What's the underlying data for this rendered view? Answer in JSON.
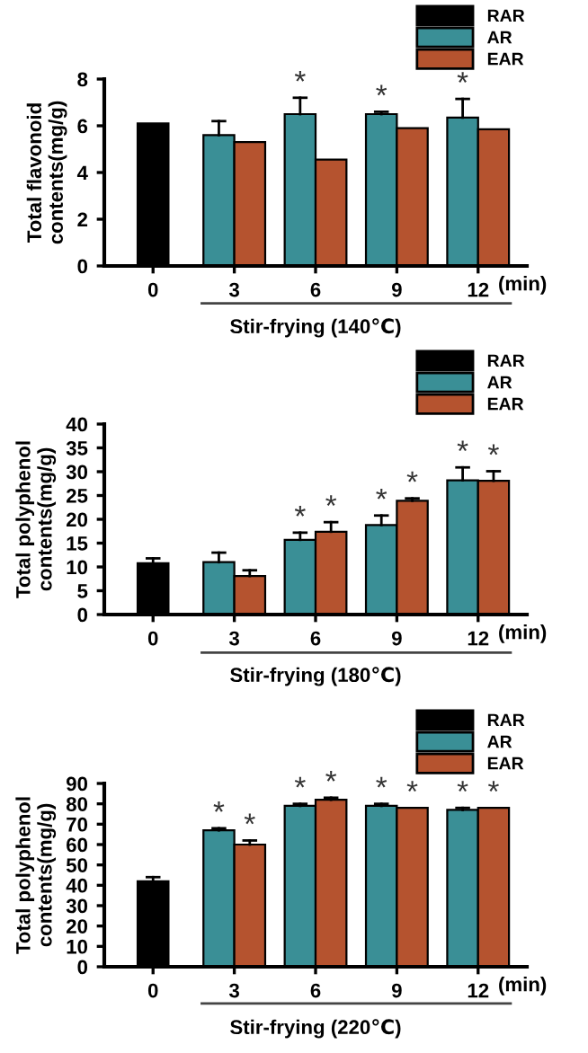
{
  "chart_data": [
    {
      "type": "bar",
      "ylabel": "Total flavonoid\ncontents(mg/g)",
      "xlabel": "Stir-frying (140℃)",
      "categories": [
        "0",
        "3",
        "6",
        "9",
        "12"
      ],
      "ylim": [
        0,
        8
      ],
      "yticks": [
        0,
        2,
        4,
        6,
        8
      ],
      "grid": false,
      "legend": "top right",
      "annotations": [
        "(min)"
      ],
      "series": [
        {
          "name": "RAR",
          "color": "#000000",
          "values": [
            6.1,
            null,
            null,
            null,
            null
          ]
        },
        {
          "name": "AR",
          "color": "#3a8f96",
          "values": [
            null,
            5.6,
            6.5,
            6.5,
            6.35
          ],
          "errors": [
            null,
            [
              5.6,
              6.2
            ],
            [
              6.5,
              7.2
            ],
            [
              6.5,
              6.6
            ],
            [
              6.35,
              7.15
            ]
          ],
          "value_labels": [
            null,
            null,
            "*",
            "*",
            "*"
          ]
        },
        {
          "name": "EAR",
          "color": "#b5532f",
          "values": [
            null,
            5.3,
            4.55,
            5.9,
            5.85
          ]
        }
      ]
    },
    {
      "type": "bar",
      "ylabel": "Total polyphenol\ncontents(mg/g)",
      "xlabel": "Stir-frying (180℃)",
      "categories": [
        "0",
        "3",
        "6",
        "9",
        "12"
      ],
      "ylim": [
        0,
        40
      ],
      "yticks": [
        0,
        5,
        10,
        15,
        20,
        25,
        30,
        35,
        40
      ],
      "grid": false,
      "legend": "top right",
      "annotations": [
        "(min)"
      ],
      "series": [
        {
          "name": "RAR",
          "color": "#000000",
          "values": [
            10.8,
            null,
            null,
            null,
            null
          ],
          "errors": [
            [
              10.8,
              11.8
            ],
            null,
            null,
            null,
            null
          ]
        },
        {
          "name": "AR",
          "color": "#3a8f96",
          "values": [
            null,
            11.0,
            15.7,
            18.8,
            28.2
          ],
          "errors": [
            null,
            [
              11.0,
              13.0
            ],
            [
              15.7,
              17.2
            ],
            [
              18.8,
              20.8
            ],
            [
              28.2,
              30.9
            ]
          ],
          "value_labels": [
            null,
            null,
            "*",
            "*",
            "*"
          ]
        },
        {
          "name": "EAR",
          "color": "#b5532f",
          "values": [
            null,
            8.1,
            17.4,
            23.9,
            28.1
          ],
          "errors": [
            null,
            [
              8.1,
              9.3
            ],
            [
              17.4,
              19.4
            ],
            [
              23.9,
              24.4
            ],
            [
              28.1,
              30.1
            ]
          ],
          "value_labels": [
            null,
            null,
            "*",
            "*",
            "*"
          ]
        }
      ]
    },
    {
      "type": "bar",
      "ylabel": "Total polyphenol\ncontents(mg/g)",
      "xlabel": "Stir-frying (220℃)",
      "categories": [
        "0",
        "3",
        "6",
        "9",
        "12"
      ],
      "ylim": [
        0,
        90
      ],
      "yticks": [
        0,
        10,
        20,
        30,
        40,
        50,
        60,
        70,
        80,
        90
      ],
      "grid": false,
      "legend": "top right",
      "annotations": [
        "(min)"
      ],
      "series": [
        {
          "name": "RAR",
          "color": "#000000",
          "values": [
            42,
            null,
            null,
            null,
            null
          ],
          "errors": [
            [
              42,
              44
            ],
            null,
            null,
            null,
            null
          ]
        },
        {
          "name": "AR",
          "color": "#3a8f96",
          "values": [
            null,
            67,
            79,
            79,
            77
          ],
          "errors": [
            null,
            [
              67,
              68
            ],
            [
              79,
              80
            ],
            [
              79,
              80
            ],
            [
              77,
              78
            ]
          ],
          "value_labels": [
            null,
            "*",
            "*",
            "*",
            "*"
          ]
        },
        {
          "name": "EAR",
          "color": "#b5532f",
          "values": [
            null,
            60,
            82,
            78,
            78
          ],
          "errors": [
            null,
            [
              60,
              62
            ],
            [
              82,
              83
            ],
            null,
            null
          ],
          "value_labels": [
            null,
            "*",
            "*",
            "*",
            "*"
          ]
        }
      ]
    }
  ]
}
